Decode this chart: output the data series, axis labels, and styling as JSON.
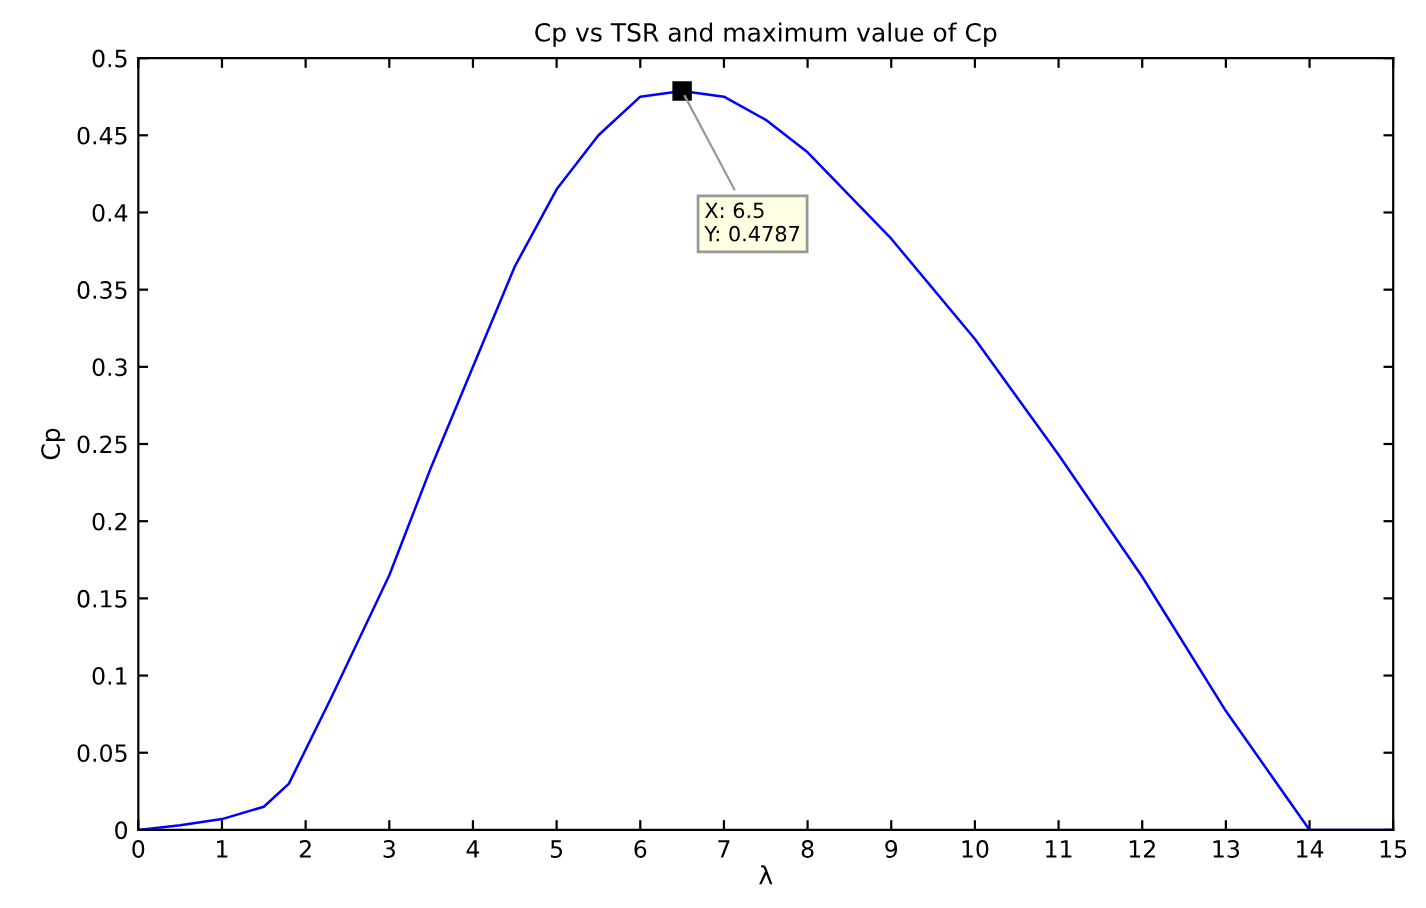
{
  "chart_data": {
    "type": "line",
    "title": "Cp vs TSR and maximum value of Cp",
    "xlabel": "λ",
    "ylabel": "Cp",
    "x": [
      0,
      0.5,
      1,
      1.5,
      1.8,
      2.3,
      3,
      3.5,
      4,
      4.5,
      5,
      5.5,
      6,
      6.5,
      7,
      7.5,
      8,
      9,
      10,
      11,
      12,
      13,
      14,
      15
    ],
    "series": [
      {
        "color": "#0000ff",
        "values": [
          0,
          0.003,
          0.007,
          0.015,
          0.03,
          0.085,
          0.165,
          0.235,
          0.3,
          0.365,
          0.415,
          0.45,
          0.475,
          0.4787,
          0.475,
          0.46,
          0.439,
          0.383,
          0.318,
          0.243,
          0.164,
          0.077,
          0,
          0
        ]
      }
    ],
    "annotations": [
      {
        "text": "X: 6.5\nY: 0.4787",
        "x": 6.5,
        "y": 0.4787
      }
    ],
    "xlim": [
      0,
      15
    ],
    "xticks": [
      0,
      1,
      2,
      3,
      4,
      5,
      6,
      7,
      8,
      9,
      10,
      11,
      12,
      13,
      14,
      15
    ],
    "ylim": [
      0,
      0.5
    ],
    "yticks": [
      0,
      0.05,
      0.1,
      0.15,
      0.2,
      0.25,
      0.3,
      0.35,
      0.4,
      0.45,
      0.5
    ],
    "grid": false,
    "marker": "none",
    "line_style": "solid",
    "legend": false
  }
}
